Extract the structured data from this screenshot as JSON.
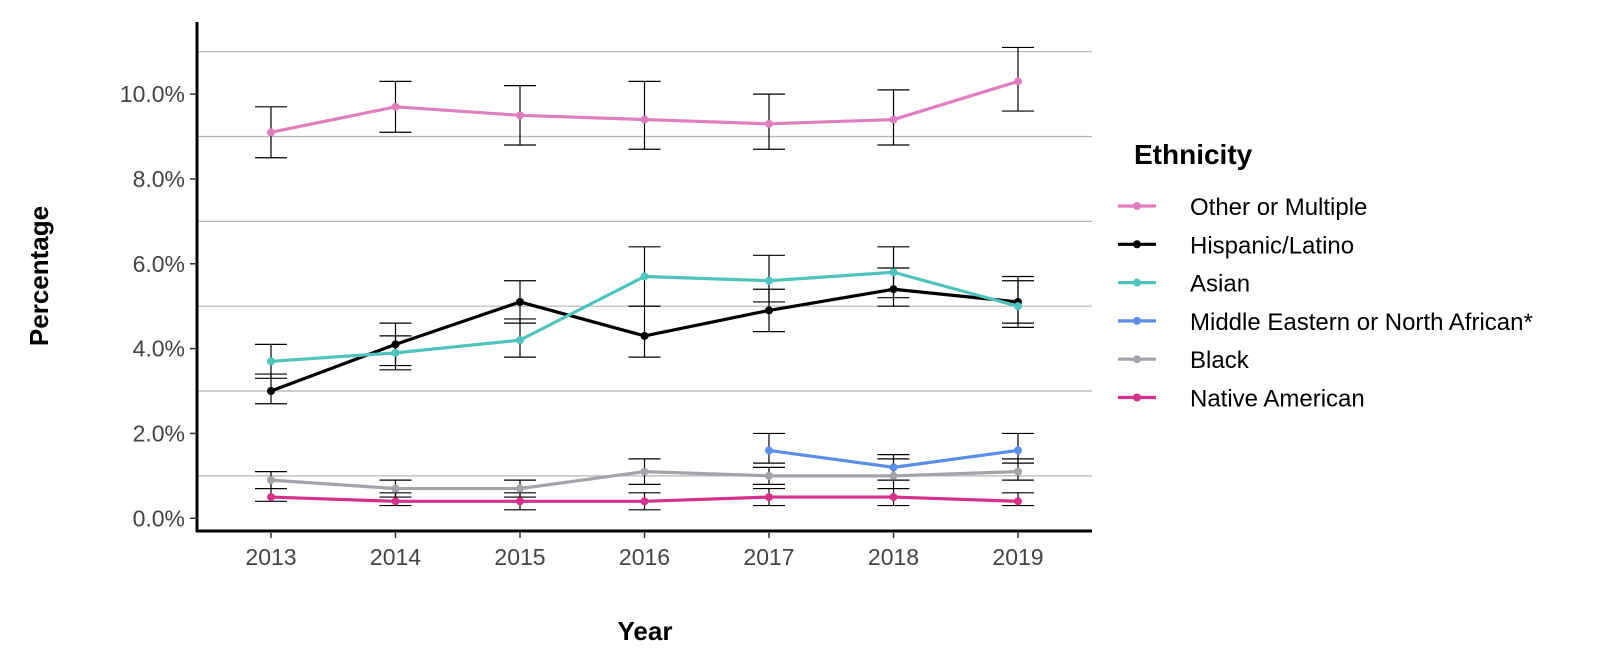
{
  "chart_data": {
    "type": "line",
    "title": "",
    "xlabel": "Year",
    "ylabel": "Percentage",
    "categories": [
      "2013",
      "2014",
      "2015",
      "2016",
      "2017",
      "2018",
      "2019"
    ],
    "y_ticks": [
      "0.0%",
      "2.0%",
      "4.0%",
      "6.0%",
      "8.0%",
      "10.0%"
    ],
    "y_tick_values": [
      0,
      2,
      4,
      6,
      8,
      10
    ],
    "ylim": [
      -0.3,
      11.7
    ],
    "grid": "horizontal at odd percentages (1, 3, 5, 7, 9, 11)",
    "grid_values": [
      1,
      3,
      5,
      7,
      9,
      11
    ],
    "legend": {
      "title": "Ethnicity",
      "placement": "right"
    },
    "series": [
      {
        "name": "Other or Multiple",
        "color": "#E07FC0",
        "values": [
          9.1,
          9.7,
          9.5,
          9.4,
          9.3,
          9.4,
          10.3
        ],
        "err_low": [
          8.5,
          9.1,
          8.8,
          8.7,
          8.7,
          8.8,
          9.6
        ],
        "err_high": [
          9.7,
          10.3,
          10.2,
          10.3,
          10.0,
          10.1,
          11.1
        ]
      },
      {
        "name": "Hispanic/Latino",
        "color": "#000000",
        "values": [
          3.0,
          4.1,
          5.1,
          4.3,
          4.9,
          5.4,
          5.1
        ],
        "err_low": [
          2.7,
          3.6,
          4.6,
          3.8,
          4.4,
          5.0,
          4.6
        ],
        "err_high": [
          3.4,
          4.6,
          5.6,
          5.0,
          5.4,
          5.9,
          5.7
        ]
      },
      {
        "name": "Asian",
        "color": "#4EC4BD",
        "values": [
          3.7,
          3.9,
          4.2,
          5.7,
          5.6,
          5.8,
          5.0
        ],
        "err_low": [
          3.3,
          3.5,
          3.8,
          5.0,
          5.1,
          5.2,
          4.5
        ],
        "err_high": [
          4.1,
          4.3,
          4.7,
          6.4,
          6.2,
          6.4,
          5.6
        ]
      },
      {
        "name": "Middle Eastern or North African*",
        "color": "#5B8EE8",
        "values": [
          null,
          null,
          null,
          null,
          1.6,
          1.2,
          1.6
        ],
        "err_low": [
          null,
          null,
          null,
          null,
          1.3,
          0.9,
          1.3
        ],
        "err_high": [
          null,
          null,
          null,
          null,
          2.0,
          1.5,
          2.0
        ]
      },
      {
        "name": "Black",
        "color": "#A3A3AB",
        "values": [
          0.9,
          0.7,
          0.7,
          1.1,
          1.0,
          1.0,
          1.1
        ],
        "err_low": [
          0.7,
          0.5,
          0.5,
          0.8,
          0.8,
          0.7,
          0.9
        ],
        "err_high": [
          1.1,
          0.9,
          0.9,
          1.4,
          1.2,
          1.4,
          1.4
        ]
      },
      {
        "name": "Native American",
        "color": "#D5318B",
        "values": [
          0.5,
          0.4,
          0.4,
          0.4,
          0.5,
          0.5,
          0.4
        ],
        "err_low": [
          0.4,
          0.3,
          0.2,
          0.2,
          0.3,
          0.3,
          0.3
        ],
        "err_high": [
          0.7,
          0.6,
          0.6,
          0.6,
          0.7,
          0.7,
          0.6
        ]
      }
    ]
  }
}
